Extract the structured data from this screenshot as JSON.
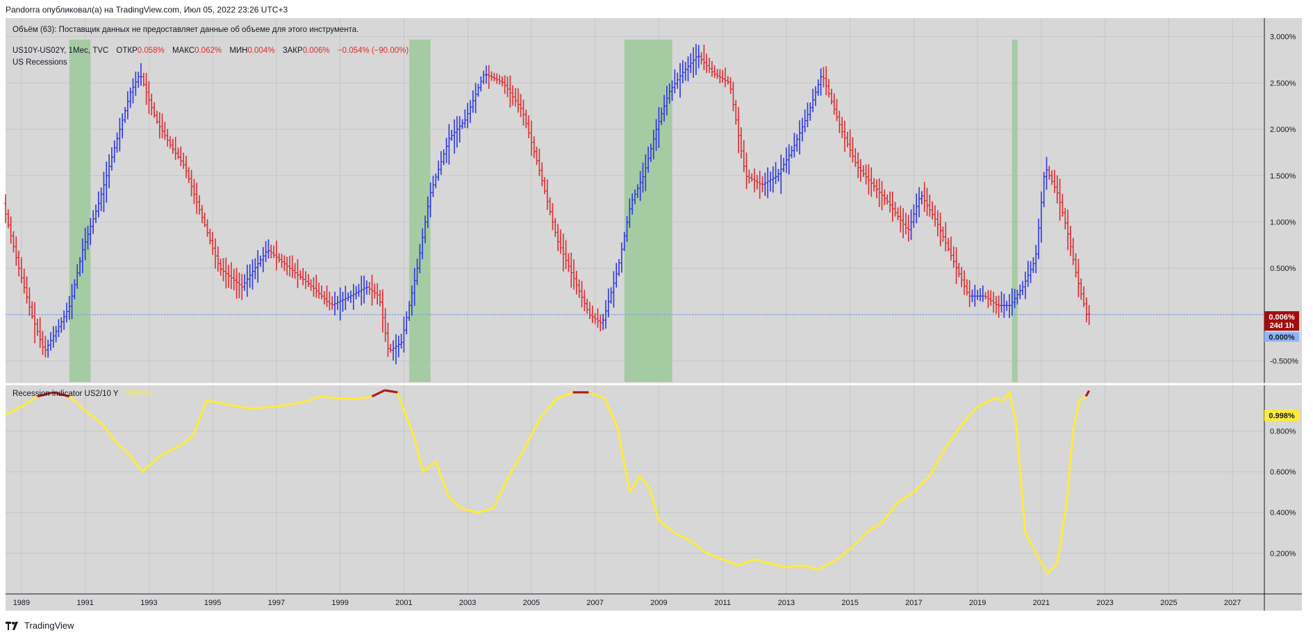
{
  "header": {
    "published": "Pandorra опубликовал(а) на TradingView.com, Июл 05, 2022 23:26 UTC+3"
  },
  "notice": "Объём (63): Поставщик данных не предоставляет данные об объеме для этого инструмента.",
  "symbol_line": {
    "symbol": "US10Y-US02Y, 1Мес, TVC",
    "open_label": "ОТКР",
    "open_value": "0.058%",
    "high_label": "МАКС",
    "high_value": "0.062%",
    "low_label": "МИН",
    "low_value": "0.004%",
    "close_label": "ЗАКР",
    "close_value": "0.006%",
    "change": "−0.054% (−90.00%)"
  },
  "recessions_label": "US Recessions",
  "indicator_label": "Recession indicator US2/10 Y",
  "indicator_value": "0.998%",
  "footer": {
    "brand": "TradingView"
  },
  "colors": {
    "background": "#d7d7d7",
    "up": "#2b35e6",
    "down": "#e0292f",
    "recession": "#9cc99a",
    "indicator": "#ffeb3b",
    "indicator_high": "#b01c1c",
    "zero_line": "#5b8ff9",
    "price_tag": "#a50d0d",
    "zero_tag": "#8fb5f7"
  },
  "chart_data": [
    {
      "type": "line",
      "name": "US10Y-US02Y",
      "x_range": [
        "1988-07",
        "2027-12"
      ],
      "ylim": [
        -0.75,
        3.2
      ],
      "y_ticks": [
        "3.000%",
        "2.500%",
        "2.000%",
        "1.500%",
        "1.000%",
        "0.500%",
        "0.000%",
        "-0.500%"
      ],
      "y_tick_values": [
        3.0,
        2.5,
        2.0,
        1.5,
        1.0,
        0.5,
        0.0,
        -0.5
      ],
      "x_ticks": [
        "1989",
        "1991",
        "1993",
        "1995",
        "1997",
        "1999",
        "2001",
        "2003",
        "2005",
        "2007",
        "2009",
        "2011",
        "2013",
        "2015",
        "2017",
        "2019",
        "2021",
        "2023",
        "2025",
        "2027"
      ],
      "x": [
        1988.5,
        1989.0,
        1989.4,
        1989.8,
        1990.3,
        1990.6,
        1991.0,
        1991.5,
        1992.0,
        1992.5,
        1992.8,
        1993.3,
        1993.8,
        1994.2,
        1994.8,
        1995.3,
        1996.0,
        1996.8,
        1997.5,
        1998.2,
        1998.8,
        1999.4,
        1999.9,
        2000.3,
        2000.6,
        2001.0,
        2001.5,
        2001.9,
        2002.5,
        2003.0,
        2003.6,
        2004.2,
        2004.8,
        2005.3,
        2005.9,
        2006.4,
        2006.9,
        2007.3,
        2007.8,
        2008.2,
        2008.6,
        2009.0,
        2009.4,
        2009.8,
        2010.3,
        2010.8,
        2011.3,
        2011.8,
        2012.3,
        2012.8,
        2013.3,
        2013.8,
        2014.2,
        2014.8,
        2015.3,
        2015.8,
        2016.3,
        2016.9,
        2017.3,
        2017.8,
        2018.3,
        2018.8,
        2019.3,
        2019.7,
        2020.1,
        2020.5,
        2020.9,
        2021.2,
        2021.6,
        2021.9,
        2022.2,
        2022.5
      ],
      "values": [
        1.2,
        0.5,
        0.0,
        -0.4,
        -0.1,
        0.1,
        0.7,
        1.2,
        1.8,
        2.4,
        2.6,
        2.1,
        1.8,
        1.6,
        1.0,
        0.5,
        0.3,
        0.7,
        0.5,
        0.3,
        0.1,
        0.2,
        0.3,
        0.2,
        -0.4,
        -0.3,
        0.5,
        1.3,
        1.9,
        2.1,
        2.6,
        2.5,
        2.2,
        1.6,
        0.8,
        0.4,
        0.0,
        -0.1,
        0.5,
        1.2,
        1.5,
        2.0,
        2.4,
        2.6,
        2.8,
        2.6,
        2.5,
        1.5,
        1.4,
        1.5,
        1.8,
        2.2,
        2.6,
        2.0,
        1.6,
        1.4,
        1.2,
        0.9,
        1.3,
        1.0,
        0.6,
        0.2,
        0.2,
        0.1,
        0.1,
        0.3,
        0.6,
        1.6,
        1.3,
        0.9,
        0.4,
        0.006
      ],
      "recessions": [
        [
          "1990-07",
          "1991-03"
        ],
        [
          "2001-03",
          "2001-11"
        ],
        [
          "2007-12",
          "2009-06"
        ],
        [
          "2020-02",
          "2020-04"
        ]
      ]
    },
    {
      "type": "line",
      "name": "Recession indicator US2/10 Y",
      "ylim": [
        0.0,
        1.02
      ],
      "y_ticks": [
        "0.800%",
        "0.600%",
        "0.400%",
        "0.200%"
      ],
      "y_tick_values": [
        0.8,
        0.6,
        0.4,
        0.2
      ],
      "x": [
        1988.5,
        1989.0,
        1989.5,
        1990.0,
        1990.5,
        1991.0,
        1991.5,
        1992.0,
        1992.4,
        1992.8,
        1993.2,
        1993.6,
        1994.0,
        1994.4,
        1994.8,
        1995.5,
        1996.2,
        1997.0,
        1997.8,
        1998.4,
        1999.0,
        1999.6,
        2000.0,
        2000.4,
        2000.8,
        2001.1,
        2001.3,
        2001.6,
        2002.0,
        2002.4,
        2002.8,
        2003.3,
        2003.8,
        2004.2,
        2004.8,
        2005.3,
        2005.8,
        2006.3,
        2006.8,
        2007.3,
        2007.7,
        2007.9,
        2008.1,
        2008.4,
        2008.7,
        2009.0,
        2009.5,
        2010.0,
        2010.5,
        2011.0,
        2011.5,
        2012.0,
        2012.5,
        2013.0,
        2013.5,
        2014.0,
        2014.5,
        2015.0,
        2015.5,
        2016.0,
        2016.5,
        2017.0,
        2017.5,
        2018.0,
        2018.5,
        2019.0,
        2019.5,
        2019.8,
        2020.0,
        2020.2,
        2020.5,
        2020.9,
        2021.2,
        2021.5,
        2021.8,
        2022.0,
        2022.2,
        2022.4,
        2022.5
      ],
      "values": [
        0.88,
        0.92,
        0.97,
        0.99,
        0.97,
        0.9,
        0.84,
        0.74,
        0.68,
        0.6,
        0.66,
        0.7,
        0.73,
        0.78,
        0.95,
        0.93,
        0.91,
        0.92,
        0.94,
        0.97,
        0.96,
        0.96,
        0.97,
        1.0,
        0.99,
        0.86,
        0.78,
        0.6,
        0.65,
        0.48,
        0.42,
        0.4,
        0.42,
        0.55,
        0.72,
        0.87,
        0.96,
        0.99,
        0.99,
        0.96,
        0.82,
        0.65,
        0.5,
        0.58,
        0.52,
        0.36,
        0.3,
        0.26,
        0.2,
        0.17,
        0.14,
        0.17,
        0.15,
        0.13,
        0.14,
        0.12,
        0.16,
        0.22,
        0.3,
        0.35,
        0.45,
        0.5,
        0.58,
        0.72,
        0.83,
        0.92,
        0.96,
        0.95,
        0.99,
        0.85,
        0.3,
        0.18,
        0.1,
        0.15,
        0.45,
        0.8,
        0.95,
        0.97,
        0.998
      ]
    }
  ]
}
